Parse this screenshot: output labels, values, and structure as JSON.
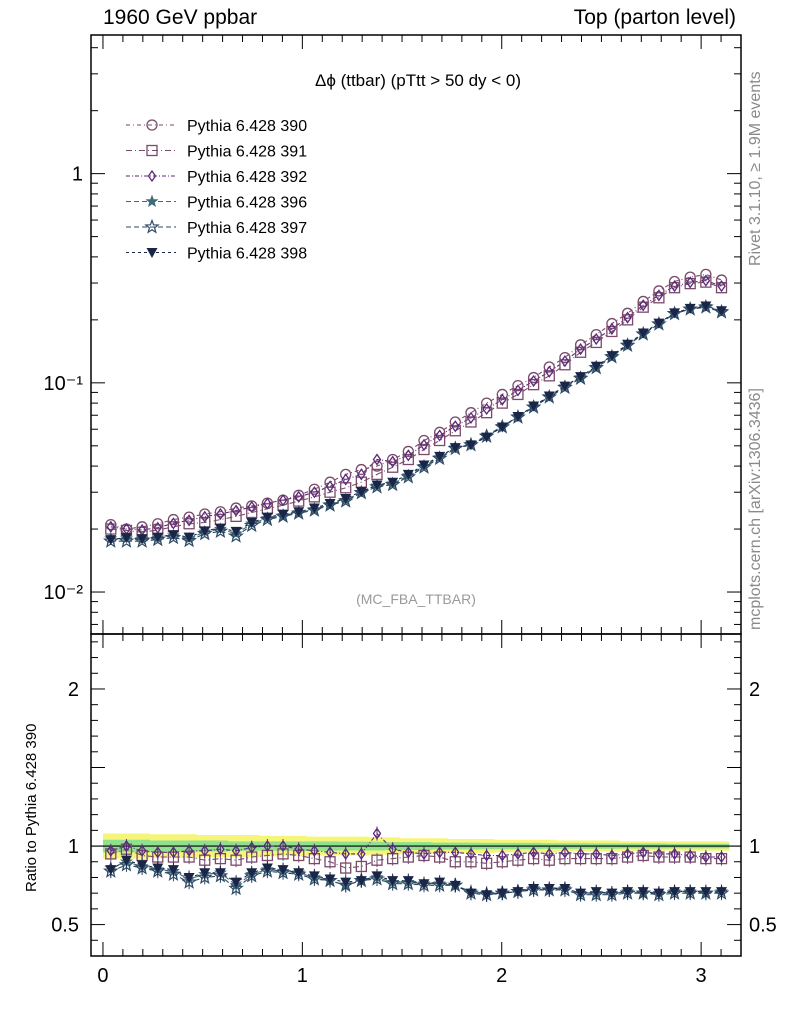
{
  "header": {
    "left": "1960 GeV ppbar",
    "right": "Top (parton level)"
  },
  "side_labels": {
    "rivet": "Rivet 3.1.10, ≥ 1.9M events",
    "mcplots": "mcplots.cern.ch [arXiv:1306.3436]"
  },
  "colors": {
    "s390": "#7b4a6b",
    "s391": "#7b4a6b",
    "s392": "#5a2a7a",
    "s396": "#3e6a7a",
    "s397": "#2e4a66",
    "s398": "#1a2548",
    "band_yellow": "#f5f57a",
    "band_green": "#8fe08f",
    "analysis_tag": "#9a9a9a"
  },
  "chart_data": {
    "type": "line",
    "title": "Δϕ (ttbar) (pTtt > 50 dy < 0)",
    "analysis_tag": "(MC_FBA_TTBAR)",
    "xlabel": "",
    "ylabel": "",
    "ratio_ylabel": "Ratio to Pythia 6.428 390",
    "main_yscale": "log",
    "main_ylim": [
      0.0063,
      4.6
    ],
    "main_yticks": [
      {
        "value": 1,
        "label": "1"
      },
      {
        "value": 0.1,
        "label": "10⁻¹"
      },
      {
        "value": 0.01,
        "label": "10⁻²"
      }
    ],
    "ratio_ylim": [
      0.3,
      2.35
    ],
    "ratio_yticks": [
      {
        "value": 2,
        "label": "2"
      },
      {
        "value": 1,
        "label": "1"
      },
      {
        "value": 0.5,
        "label": "0.5"
      }
    ],
    "xlim": [
      -0.06,
      3.2
    ],
    "xticks": [
      {
        "value": 0,
        "label": "0"
      },
      {
        "value": 1,
        "label": "1"
      },
      {
        "value": 2,
        "label": "2"
      },
      {
        "value": 3,
        "label": "3"
      }
    ],
    "legend_placement": "top-left",
    "x": [
      0.0393,
      0.1178,
      0.1963,
      0.2749,
      0.3534,
      0.432,
      0.5105,
      0.589,
      0.6676,
      0.7461,
      0.8247,
      0.9032,
      0.9817,
      1.0603,
      1.1388,
      1.2174,
      1.2959,
      1.3744,
      1.453,
      1.5315,
      1.6101,
      1.6886,
      1.7671,
      1.8457,
      1.9242,
      2.0028,
      2.0813,
      2.1598,
      2.2384,
      2.3169,
      2.3955,
      2.474,
      2.5525,
      2.6311,
      2.7096,
      2.7882,
      2.8667,
      2.9452,
      3.0238,
      3.1023
    ],
    "series": [
      {
        "name": "Pythia 6.428 390",
        "color_key": "s390",
        "marker": "circle",
        "dash": "4,3,1,3",
        "values": [
          0.021,
          0.02,
          0.0205,
          0.0212,
          0.0222,
          0.0228,
          0.0236,
          0.0242,
          0.0252,
          0.0258,
          0.0266,
          0.0275,
          0.029,
          0.031,
          0.0335,
          0.0365,
          0.0385,
          0.04,
          0.043,
          0.047,
          0.053,
          0.058,
          0.065,
          0.072,
          0.08,
          0.088,
          0.097,
          0.106,
          0.119,
          0.132,
          0.152,
          0.17,
          0.192,
          0.215,
          0.245,
          0.275,
          0.305,
          0.32,
          0.33,
          0.31
        ]
      },
      {
        "name": "Pythia 6.428 391",
        "color_key": "s391",
        "marker": "square",
        "dash": "6,3,1,3",
        "values": [
          0.02,
          0.0197,
          0.0193,
          0.0198,
          0.0205,
          0.0212,
          0.0215,
          0.0222,
          0.023,
          0.024,
          0.025,
          0.026,
          0.0272,
          0.0285,
          0.03,
          0.0315,
          0.0335,
          0.0365,
          0.0395,
          0.043,
          0.048,
          0.053,
          0.059,
          0.065,
          0.072,
          0.08,
          0.088,
          0.098,
          0.108,
          0.122,
          0.14,
          0.156,
          0.176,
          0.2,
          0.23,
          0.255,
          0.285,
          0.298,
          0.303,
          0.285
        ]
      },
      {
        "name": "Pythia 6.428 392",
        "color_key": "s392",
        "marker": "diamond",
        "dash": "4,2,1,2",
        "values": [
          0.0205,
          0.02,
          0.0198,
          0.0203,
          0.0213,
          0.022,
          0.0229,
          0.0236,
          0.0245,
          0.0255,
          0.0265,
          0.0275,
          0.0285,
          0.03,
          0.032,
          0.0345,
          0.0365,
          0.043,
          0.042,
          0.045,
          0.0505,
          0.056,
          0.062,
          0.068,
          0.075,
          0.083,
          0.092,
          0.102,
          0.113,
          0.127,
          0.145,
          0.162,
          0.181,
          0.205,
          0.235,
          0.262,
          0.29,
          0.302,
          0.308,
          0.29
        ]
      },
      {
        "name": "Pythia 6.428 396",
        "color_key": "s396",
        "marker": "star-filled",
        "dash": "5,3",
        "values": [
          0.018,
          0.018,
          0.0178,
          0.0181,
          0.0186,
          0.018,
          0.0194,
          0.02,
          0.019,
          0.0212,
          0.0225,
          0.0232,
          0.024,
          0.0248,
          0.0262,
          0.0275,
          0.03,
          0.0322,
          0.033,
          0.036,
          0.04,
          0.044,
          0.049,
          0.051,
          0.056,
          0.062,
          0.069,
          0.077,
          0.086,
          0.096,
          0.106,
          0.119,
          0.134,
          0.152,
          0.172,
          0.192,
          0.215,
          0.226,
          0.232,
          0.22
        ]
      },
      {
        "name": "Pythia 6.428 397",
        "color_key": "s397",
        "marker": "star-open",
        "dash": "5,3",
        "values": [
          0.0175,
          0.0175,
          0.0175,
          0.0178,
          0.0182,
          0.0176,
          0.019,
          0.0195,
          0.0185,
          0.0208,
          0.0222,
          0.023,
          0.0238,
          0.0246,
          0.026,
          0.0272,
          0.0298,
          0.0318,
          0.0326,
          0.0355,
          0.0395,
          0.0435,
          0.0485,
          0.0505,
          0.0555,
          0.0615,
          0.0685,
          0.0765,
          0.0855,
          0.095,
          0.105,
          0.118,
          0.133,
          0.151,
          0.171,
          0.191,
          0.214,
          0.225,
          0.23,
          0.218
        ]
      },
      {
        "name": "Pythia 6.428 398",
        "color_key": "s398",
        "marker": "triangle-down",
        "dash": "3,3",
        "values": [
          0.0178,
          0.0182,
          0.018,
          0.0183,
          0.0188,
          0.0183,
          0.0196,
          0.0202,
          0.0195,
          0.0215,
          0.0228,
          0.0235,
          0.0242,
          0.0252,
          0.0265,
          0.028,
          0.0302,
          0.0325,
          0.0335,
          0.0365,
          0.0405,
          0.0445,
          0.049,
          0.0505,
          0.055,
          0.0615,
          0.069,
          0.0775,
          0.0865,
          0.0965,
          0.107,
          0.12,
          0.135,
          0.153,
          0.173,
          0.193,
          0.216,
          0.227,
          0.233,
          0.221
        ]
      }
    ],
    "ratio_series": [
      {
        "name": "Pythia 6.428 390",
        "values": [
          1.0,
          1.0,
          1.0,
          1.0,
          1.0,
          1.0,
          1.0,
          1.0,
          1.0,
          1.0,
          1.0,
          1.0,
          1.0,
          1.0,
          1.0,
          1.0,
          1.0,
          1.0,
          1.0,
          1.0,
          1.0,
          1.0,
          1.0,
          1.0,
          1.0,
          1.0,
          1.0,
          1.0,
          1.0,
          1.0,
          1.0,
          1.0,
          1.0,
          1.0,
          1.0,
          1.0,
          1.0,
          1.0,
          1.0,
          1.0
        ]
      },
      {
        "name": "Pythia 6.428 391",
        "values": [
          0.95,
          0.98,
          0.94,
          0.93,
          0.93,
          0.93,
          0.91,
          0.92,
          0.91,
          0.93,
          0.94,
          0.95,
          0.94,
          0.92,
          0.9,
          0.86,
          0.87,
          0.91,
          0.92,
          0.93,
          0.94,
          0.93,
          0.9,
          0.9,
          0.89,
          0.9,
          0.91,
          0.92,
          0.91,
          0.92,
          0.92,
          0.92,
          0.92,
          0.93,
          0.94,
          0.93,
          0.93,
          0.93,
          0.92,
          0.92
        ]
      },
      {
        "name": "Pythia 6.428 392",
        "values": [
          0.97,
          1.0,
          0.97,
          0.96,
          0.96,
          0.97,
          0.97,
          0.98,
          0.97,
          0.99,
          1.0,
          1.0,
          0.98,
          0.97,
          0.96,
          0.95,
          0.95,
          1.08,
          0.98,
          0.96,
          0.95,
          0.96,
          0.96,
          0.95,
          0.94,
          0.94,
          0.95,
          0.96,
          0.95,
          0.96,
          0.95,
          0.95,
          0.94,
          0.95,
          0.96,
          0.95,
          0.95,
          0.94,
          0.93,
          0.93
        ]
      },
      {
        "name": "Pythia 6.428 396",
        "values": [
          0.86,
          0.9,
          0.87,
          0.85,
          0.84,
          0.79,
          0.82,
          0.83,
          0.75,
          0.82,
          0.85,
          0.84,
          0.83,
          0.8,
          0.78,
          0.75,
          0.78,
          0.8,
          0.77,
          0.77,
          0.76,
          0.76,
          0.75,
          0.71,
          0.7,
          0.7,
          0.71,
          0.73,
          0.72,
          0.73,
          0.7,
          0.7,
          0.7,
          0.71,
          0.7,
          0.7,
          0.71,
          0.71,
          0.7,
          0.71
        ]
      },
      {
        "name": "Pythia 6.428 397",
        "values": [
          0.84,
          0.88,
          0.86,
          0.84,
          0.82,
          0.77,
          0.8,
          0.81,
          0.73,
          0.81,
          0.84,
          0.83,
          0.82,
          0.79,
          0.78,
          0.75,
          0.78,
          0.79,
          0.76,
          0.76,
          0.75,
          0.75,
          0.75,
          0.7,
          0.69,
          0.7,
          0.71,
          0.72,
          0.72,
          0.72,
          0.69,
          0.69,
          0.69,
          0.7,
          0.7,
          0.69,
          0.7,
          0.7,
          0.7,
          0.7
        ]
      },
      {
        "name": "Pythia 6.428 398",
        "values": [
          0.85,
          0.91,
          0.88,
          0.86,
          0.85,
          0.8,
          0.83,
          0.83,
          0.77,
          0.83,
          0.86,
          0.85,
          0.83,
          0.81,
          0.79,
          0.77,
          0.78,
          0.81,
          0.78,
          0.78,
          0.76,
          0.77,
          0.75,
          0.7,
          0.69,
          0.7,
          0.71,
          0.73,
          0.73,
          0.73,
          0.7,
          0.71,
          0.7,
          0.71,
          0.71,
          0.7,
          0.71,
          0.71,
          0.71,
          0.71
        ]
      }
    ],
    "ratio_band_yellow_halfwidth": [
      0.08,
      0.08,
      0.08,
      0.075,
      0.075,
      0.075,
      0.07,
      0.07,
      0.07,
      0.07,
      0.065,
      0.065,
      0.065,
      0.06,
      0.06,
      0.06,
      0.06,
      0.055,
      0.055,
      0.05,
      0.05,
      0.05,
      0.045,
      0.045,
      0.045,
      0.04,
      0.04,
      0.04,
      0.04,
      0.035,
      0.035,
      0.035,
      0.035,
      0.03,
      0.03,
      0.03,
      0.03,
      0.03,
      0.03,
      0.03
    ],
    "ratio_band_green_halfwidth": [
      0.04,
      0.04,
      0.04,
      0.035,
      0.035,
      0.035,
      0.035,
      0.035,
      0.03,
      0.03,
      0.03,
      0.03,
      0.03,
      0.03,
      0.03,
      0.028,
      0.028,
      0.028,
      0.025,
      0.025,
      0.025,
      0.022,
      0.022,
      0.022,
      0.02,
      0.02,
      0.02,
      0.02,
      0.018,
      0.018,
      0.018,
      0.017,
      0.017,
      0.016,
      0.016,
      0.016,
      0.015,
      0.015,
      0.015,
      0.015
    ]
  }
}
